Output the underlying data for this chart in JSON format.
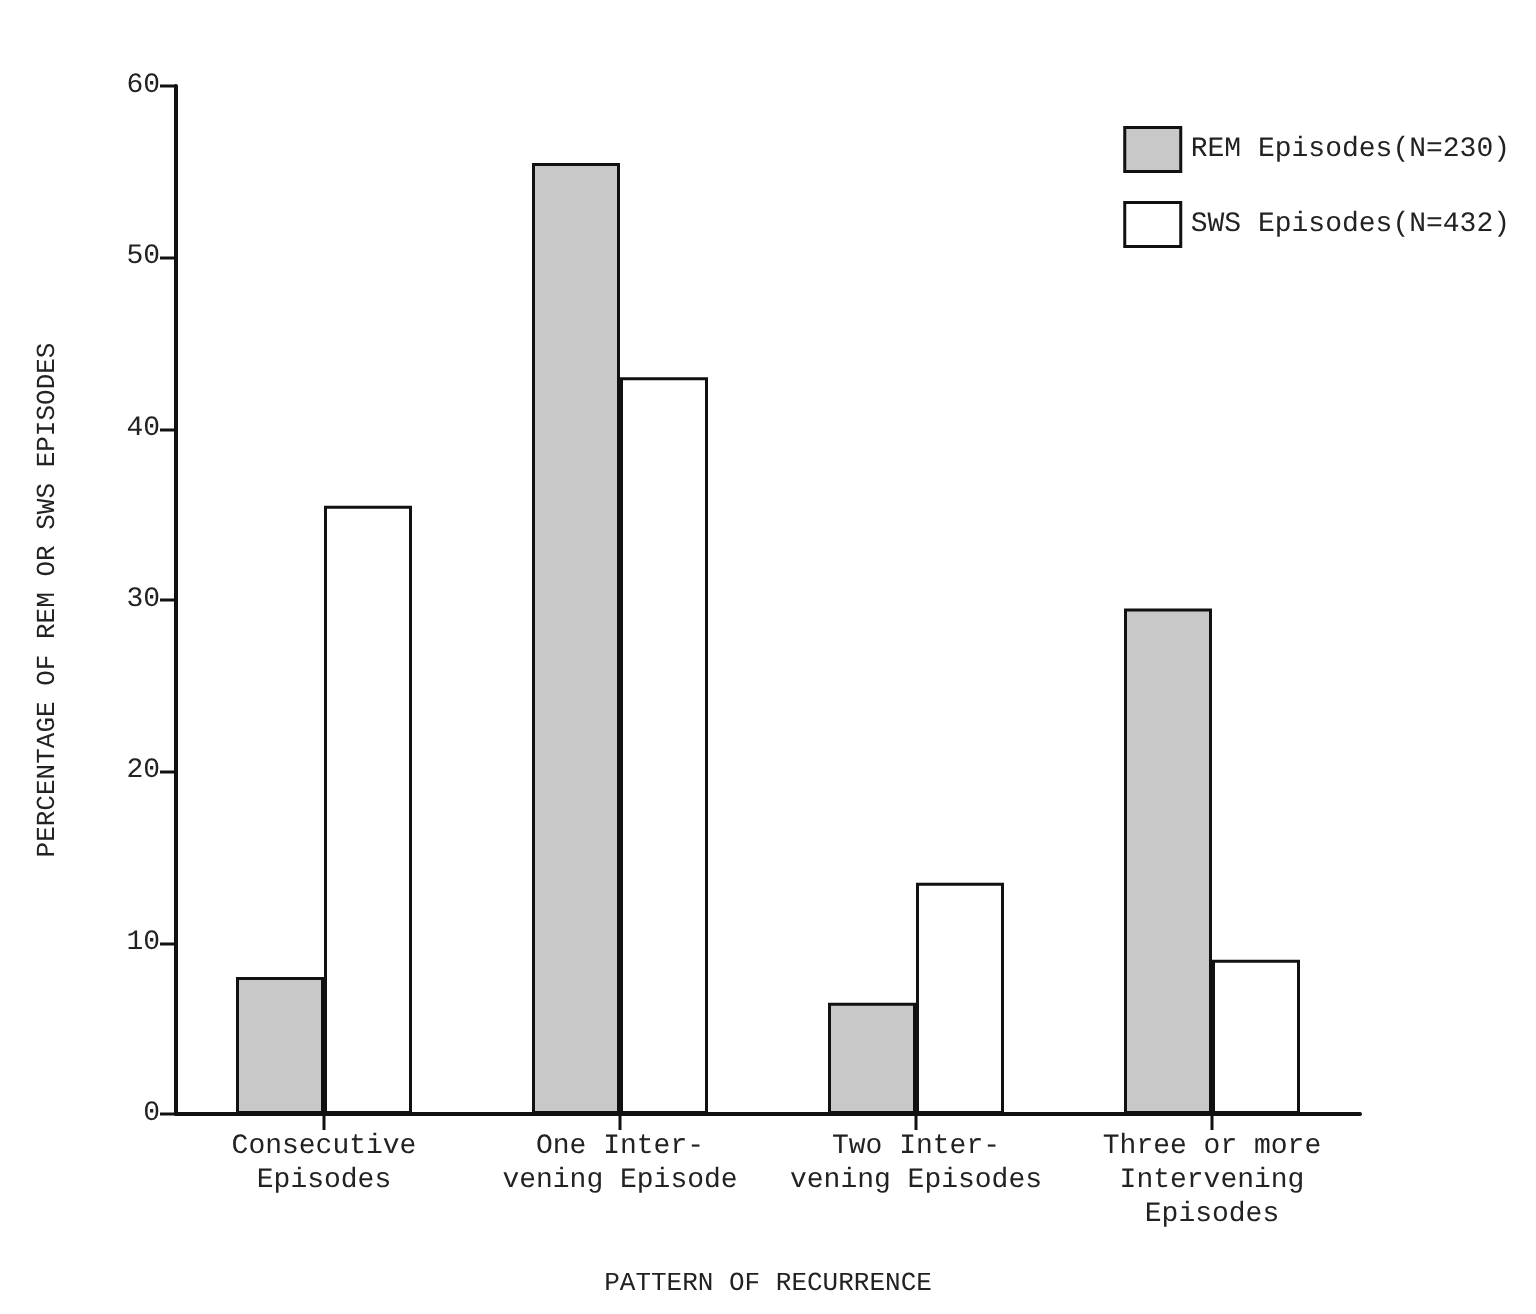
{
  "chart_data": {
    "type": "bar",
    "xlabel": "PATTERN OF RECURRENCE",
    "ylabel": "PERCENTAGE OF REM OR SWS EPISODES",
    "categories": [
      "Consecutive\nEpisodes",
      "One Inter-\nvening Episode",
      "Two Inter-\nvening Episodes",
      "Three or more\nIntervening\nEpisodes"
    ],
    "series": [
      {
        "name": "REM Episodes(N=230)",
        "color": "#c8c8c8",
        "values": [
          8,
          55.5,
          6.5,
          29.5
        ]
      },
      {
        "name": "SWS Episodes(N=432)",
        "color": "#ffffff",
        "values": [
          35.5,
          43,
          13.5,
          9
        ]
      }
    ],
    "ylim": [
      0,
      60
    ],
    "yticks": [
      0,
      10,
      20,
      30,
      40,
      50,
      60
    ],
    "grid": false,
    "legend": "top right"
  }
}
